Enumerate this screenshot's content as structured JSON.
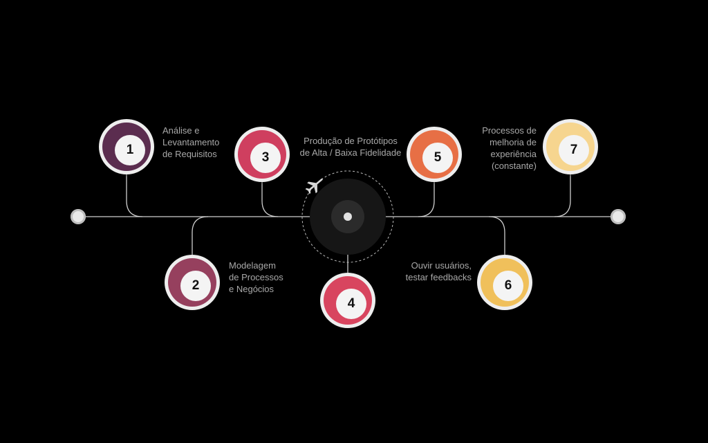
{
  "steps": [
    {
      "number": "1",
      "label": "Análise e\nLevantamento\nde Requisitos",
      "color": "#5b2d4f"
    },
    {
      "number": "2",
      "label": "Modelagem\nde Processos\ne Negócios",
      "color": "#96405e"
    },
    {
      "number": "3",
      "label": "Produção de Protótipos\nde Alta / Baixa Fidelidade",
      "color": "#cf3f5f"
    },
    {
      "number": "4",
      "label": "",
      "color": "#d8455f"
    },
    {
      "number": "5",
      "label": "",
      "color": "#e76f45"
    },
    {
      "number": "6",
      "label": "Ouvir usuários,\ntestar feedbacks",
      "color": "#f0c05b"
    },
    {
      "number": "7",
      "label": "Processos de\nmelhoria de\nexperiência\n(constante)",
      "color": "#f6d58f"
    }
  ],
  "icons": {
    "center": "airplane-icon"
  },
  "colors": {
    "line": "#d0d0d0",
    "background": "#000000"
  }
}
